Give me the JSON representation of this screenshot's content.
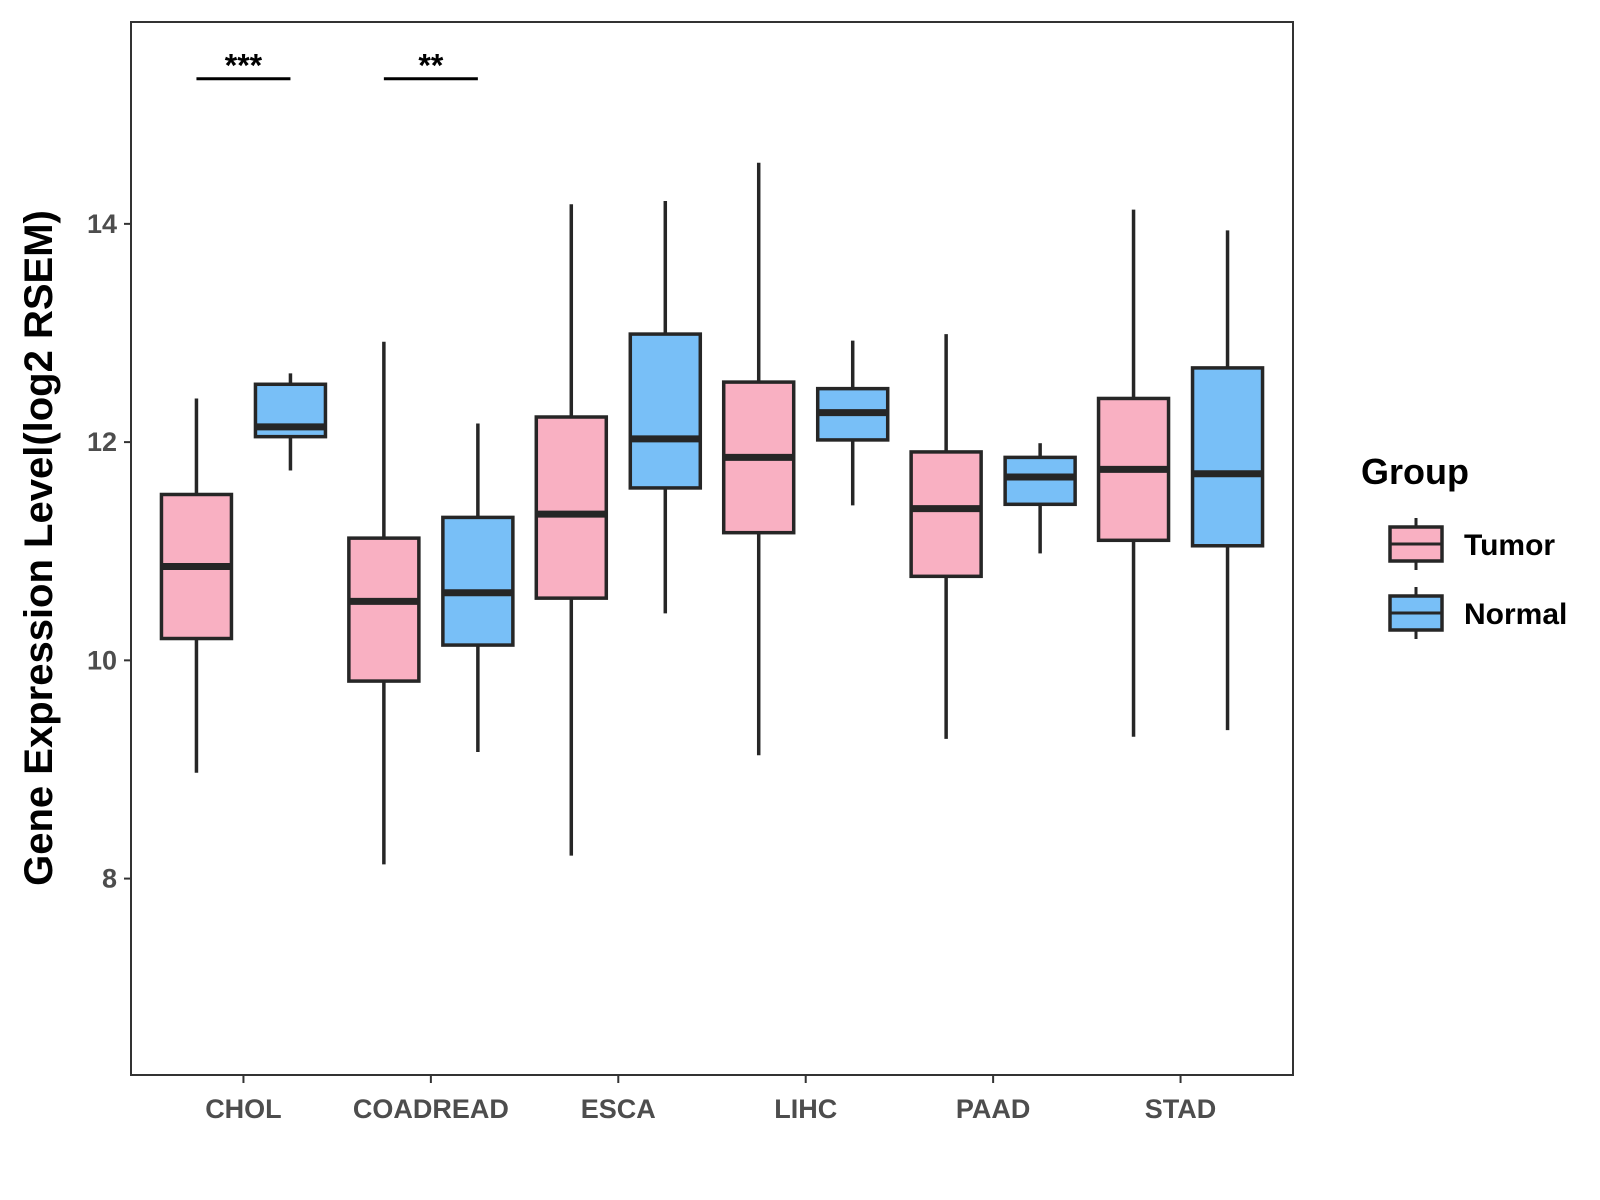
{
  "chart_data": {
    "type": "boxplot",
    "title": "",
    "xlabel": "",
    "ylabel": "Gene Expression Level(log2 RSEM)",
    "ylim": [
      6.2,
      15.85
    ],
    "y_ticks": [
      8,
      10,
      12,
      14
    ],
    "grid": false,
    "legend": {
      "title": "Group",
      "position": "right",
      "entries": [
        "Tumor",
        "Normal"
      ]
    },
    "colors": {
      "Tumor": "#f9b0c2",
      "Normal": "#78bff7",
      "outline": "#262626"
    },
    "categories": [
      "CHOL",
      "COADREAD",
      "ESCA",
      "LIHC",
      "PAAD",
      "STAD"
    ],
    "series": [
      {
        "name": "Tumor",
        "boxes": [
          {
            "min": 8.97,
            "q1": 10.2,
            "median": 10.86,
            "q3": 11.52,
            "max": 12.4
          },
          {
            "min": 8.13,
            "q1": 9.81,
            "median": 10.54,
            "q3": 11.12,
            "max": 12.92
          },
          {
            "min": 8.21,
            "q1": 10.57,
            "median": 11.34,
            "q3": 12.23,
            "max": 14.18
          },
          {
            "min": 9.13,
            "q1": 11.17,
            "median": 11.86,
            "q3": 12.55,
            "max": 14.56
          },
          {
            "min": 9.28,
            "q1": 10.77,
            "median": 11.39,
            "q3": 11.91,
            "max": 12.99
          },
          {
            "min": 9.3,
            "q1": 11.1,
            "median": 11.75,
            "q3": 12.4,
            "max": 14.13
          }
        ]
      },
      {
        "name": "Normal",
        "boxes": [
          {
            "min": 11.74,
            "q1": 12.05,
            "median": 12.14,
            "q3": 12.53,
            "max": 12.63
          },
          {
            "min": 9.16,
            "q1": 10.14,
            "median": 10.62,
            "q3": 11.31,
            "max": 12.17
          },
          {
            "min": 10.43,
            "q1": 11.58,
            "median": 12.03,
            "q3": 12.99,
            "max": 14.21
          },
          {
            "min": 11.42,
            "q1": 12.02,
            "median": 12.27,
            "q3": 12.49,
            "max": 12.93
          },
          {
            "min": 10.98,
            "q1": 11.43,
            "median": 11.68,
            "q3": 11.86,
            "max": 11.99
          },
          {
            "min": 9.36,
            "q1": 11.05,
            "median": 11.71,
            "q3": 12.68,
            "max": 13.94
          }
        ]
      }
    ],
    "annotations": [
      {
        "category": "CHOL",
        "label": "***",
        "y": 15.33
      },
      {
        "category": "COADREAD",
        "label": "**",
        "y": 15.33
      }
    ]
  }
}
